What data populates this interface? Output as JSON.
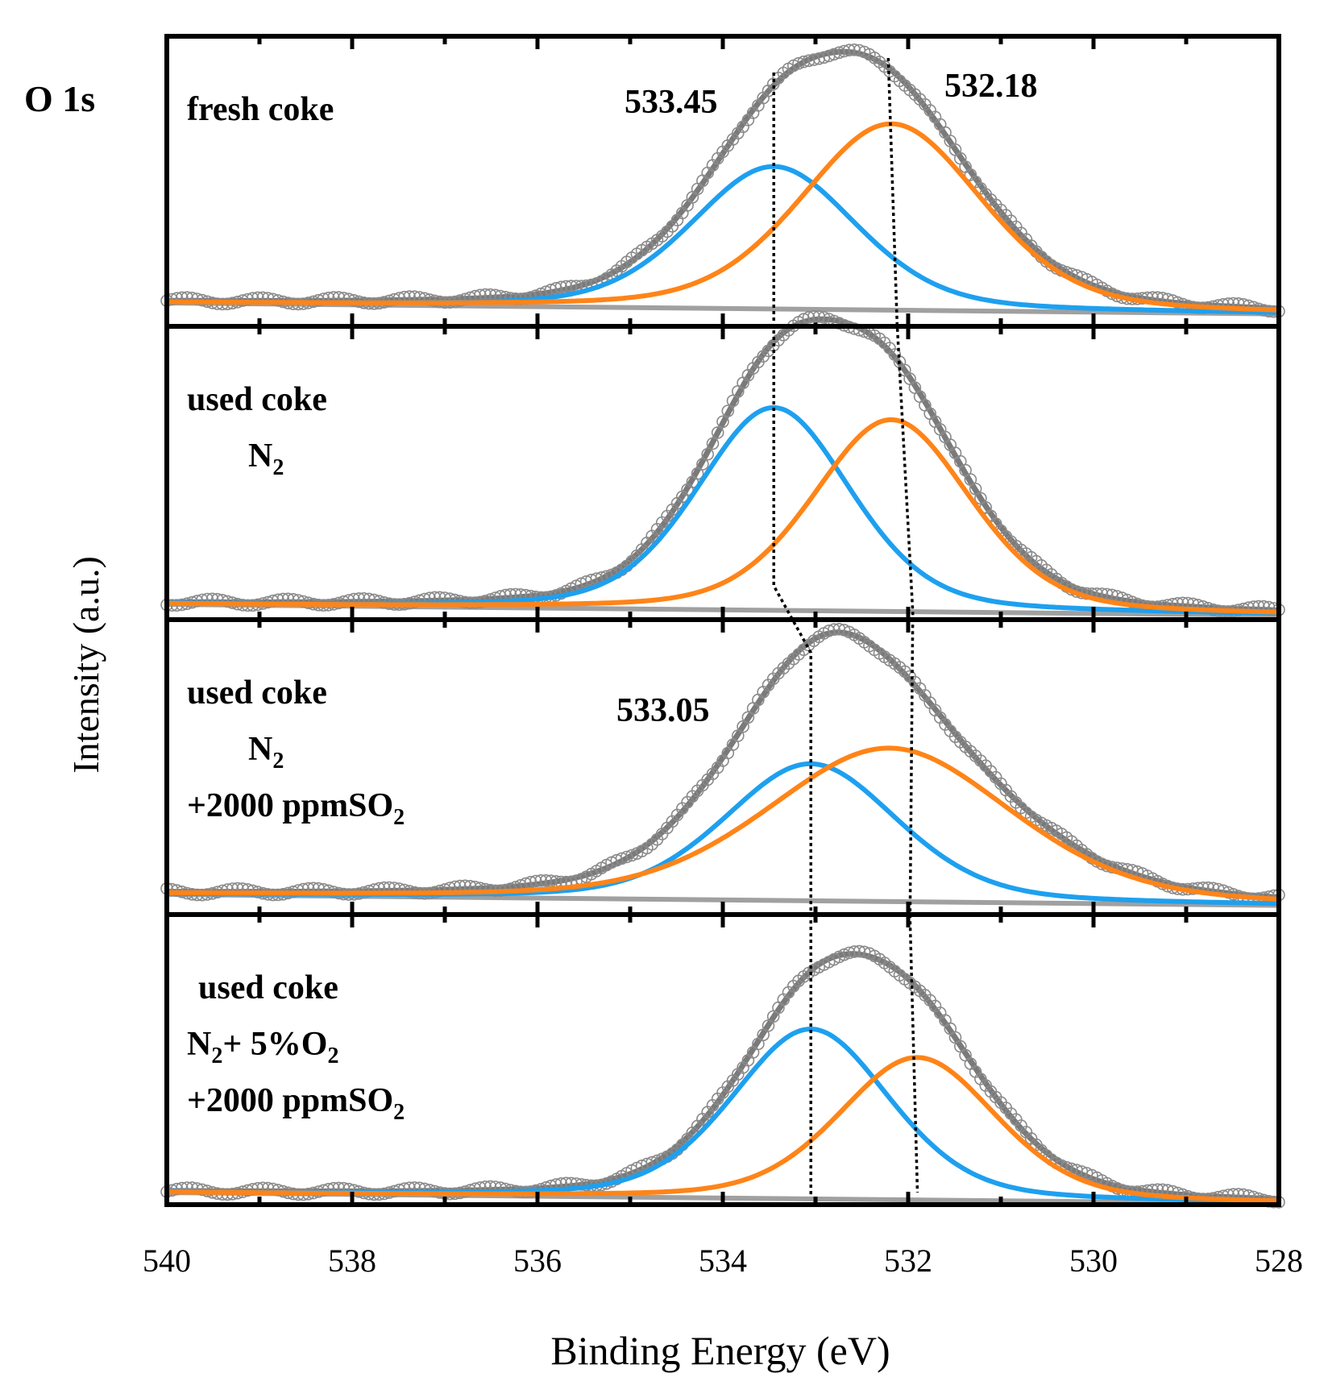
{
  "figure": {
    "element_label": "O 1s",
    "ylabel": "Intensity (a.u.)",
    "xlabel": "Binding Energy (eV)",
    "xticks": [
      "540",
      "538",
      "536",
      "534",
      "532",
      "530",
      "528"
    ]
  },
  "colors": {
    "component_high_be": "#1ea0ef",
    "component_low_be": "#ff8418",
    "background": "#a0a0a0",
    "raw_data": "#7a7a7a",
    "frame": "#000000"
  },
  "chart_data": {
    "type": "line",
    "title": "",
    "xlabel": "Binding Energy (eV)",
    "ylabel": "Intensity (a.u.)",
    "xlim": [
      540,
      528
    ],
    "x_reversed": true,
    "y_ticks_shown": false,
    "grid": false,
    "legend": "none",
    "peak_labels": [
      {
        "text": "533.45",
        "x": 533.45
      },
      {
        "text": "532.18",
        "x": 532.18
      },
      {
        "text": "533.05",
        "x": 533.05
      }
    ],
    "panels": [
      {
        "label_lines": [
          {
            "base": "fresh coke"
          }
        ],
        "series": [
          {
            "kind": "component",
            "color_key": "component_high_be",
            "center": 533.45,
            "height": 0.52,
            "fwhm": 2.1
          },
          {
            "kind": "component",
            "color_key": "component_low_be",
            "center": 532.18,
            "height": 0.68,
            "fwhm": 2.3
          },
          {
            "kind": "background",
            "start": 0.0,
            "end": -0.04
          }
        ]
      },
      {
        "label_lines": [
          {
            "base": "used coke"
          },
          {
            "base": "N",
            "sub": "2",
            "indent": true
          }
        ],
        "series": [
          {
            "kind": "component",
            "color_key": "component_high_be",
            "center": 533.45,
            "height": 0.74,
            "fwhm": 1.95
          },
          {
            "kind": "component",
            "color_key": "component_low_be",
            "center": 532.18,
            "height": 0.7,
            "fwhm": 2.0
          },
          {
            "kind": "background",
            "start": 0.0,
            "end": -0.04
          }
        ]
      },
      {
        "label_lines": [
          {
            "base": "used coke"
          },
          {
            "base": "N",
            "sub": "2",
            "indent": true
          },
          {
            "base": "+2000 ppmSO",
            "sub": "2"
          }
        ],
        "series": [
          {
            "kind": "component",
            "color_key": "component_high_be",
            "center": 533.05,
            "height": 0.5,
            "fwhm": 2.2
          },
          {
            "kind": "component",
            "color_key": "component_low_be",
            "center": 532.2,
            "height": 0.56,
            "fwhm": 3.1
          },
          {
            "kind": "background",
            "start": 0.0,
            "end": -0.04
          }
        ]
      },
      {
        "label_lines": [
          {
            "base": "used coke",
            "indent_small": true
          },
          {
            "base": "N",
            "sub": "2",
            "after": "+ 5%O",
            "sub2": "2"
          },
          {
            "base": "+2000 ppmSO",
            "sub": "2"
          }
        ],
        "series": [
          {
            "kind": "component",
            "color_key": "component_high_be",
            "center": 533.05,
            "height": 0.62,
            "fwhm": 2.0
          },
          {
            "kind": "component",
            "color_key": "component_low_be",
            "center": 531.9,
            "height": 0.52,
            "fwhm": 2.0
          },
          {
            "kind": "background",
            "start": 0.0,
            "end": -0.04
          }
        ]
      }
    ]
  }
}
